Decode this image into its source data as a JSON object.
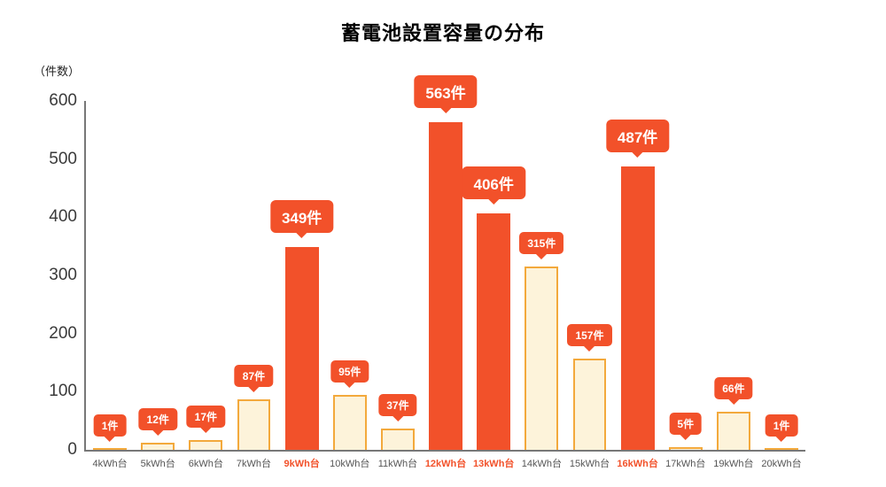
{
  "colors": {
    "accent": "#f2512a",
    "bar_fill": "#fdf3da",
    "bar_border": "#f3a93c",
    "axis": "#777777",
    "text": "#3a3a3a"
  },
  "chart_data": {
    "type": "bar",
    "title": "蓄電池設置容量の分布",
    "ylabel": "（件数）",
    "xlabel": "",
    "ylim": [
      0,
      600
    ],
    "yticks": [
      0,
      100,
      200,
      300,
      400,
      500,
      600
    ],
    "grid": false,
    "legend_position": "none",
    "categories": [
      "4kWh台",
      "5kWh台",
      "6kWh台",
      "7kWh台",
      "9kWh台",
      "10kWh台",
      "11kWh台",
      "12kWh台",
      "13kWh台",
      "14kWh台",
      "15kWh台",
      "16kWh台",
      "17kWh台",
      "19kWh台",
      "20kWh台"
    ],
    "values": [
      1,
      12,
      17,
      87,
      349,
      95,
      37,
      563,
      406,
      315,
      157,
      487,
      5,
      66,
      1
    ],
    "labels": [
      "1件",
      "12件",
      "17件",
      "87件",
      "349件",
      "95件",
      "37件",
      "563件",
      "406件",
      "315件",
      "157件",
      "487件",
      "5件",
      "66件",
      "1件"
    ],
    "highlighted": [
      false,
      false,
      false,
      false,
      true,
      false,
      false,
      true,
      true,
      false,
      false,
      true,
      false,
      false,
      false
    ]
  }
}
